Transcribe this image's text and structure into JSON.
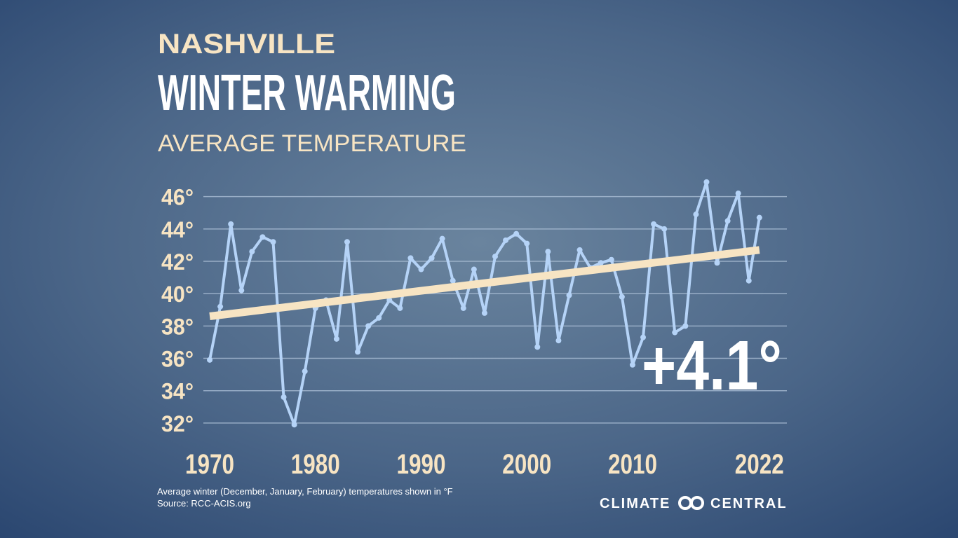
{
  "chart_data": {
    "type": "line",
    "location": "NASHVILLE",
    "title": "WINTER WARMING",
    "subtitle": "AVERAGE TEMPERATURE",
    "annotation": "+4.1°",
    "notes": [
      "Average winter (December, January, February) temperatures shown in °F",
      "Source: RCC-ACIS.org"
    ],
    "brand": {
      "left": "CLIMATE",
      "right": "CENTRAL"
    },
    "x": [
      1970,
      1971,
      1972,
      1973,
      1974,
      1975,
      1976,
      1977,
      1978,
      1979,
      1980,
      1981,
      1982,
      1983,
      1984,
      1985,
      1986,
      1987,
      1988,
      1989,
      1990,
      1991,
      1992,
      1993,
      1994,
      1995,
      1996,
      1997,
      1998,
      1999,
      2000,
      2001,
      2002,
      2003,
      2004,
      2005,
      2006,
      2007,
      2008,
      2009,
      2010,
      2011,
      2012,
      2013,
      2014,
      2015,
      2016,
      2017,
      2018,
      2019,
      2020,
      2021,
      2022
    ],
    "values": [
      35.9,
      39.2,
      44.3,
      40.2,
      42.6,
      43.5,
      43.2,
      33.6,
      31.9,
      35.2,
      39.1,
      39.6,
      37.2,
      43.2,
      36.4,
      38.0,
      38.5,
      39.6,
      39.1,
      42.2,
      41.5,
      42.2,
      43.4,
      40.8,
      39.1,
      41.5,
      38.8,
      42.3,
      43.3,
      43.7,
      43.1,
      36.7,
      42.6,
      37.1,
      39.9,
      42.7,
      41.6,
      41.9,
      42.1,
      39.8,
      35.6,
      37.3,
      44.3,
      44.0,
      37.6,
      38.0,
      44.9,
      46.9,
      41.9,
      44.5,
      46.2,
      40.8,
      44.7
    ],
    "color": "#b5d3f7",
    "trend": {
      "x": [
        1970,
        2022
      ],
      "values": [
        38.6,
        42.7
      ],
      "color": "#f7e4c3"
    },
    "xlim": [
      1969.4,
      2024.6
    ],
    "xticks": [
      1970,
      1980,
      1990,
      2000,
      2010,
      2022
    ],
    "ylim": [
      31,
      47.5
    ],
    "yticks": [
      {
        "value": 32,
        "label": "32°"
      },
      {
        "value": 34,
        "label": "34°"
      },
      {
        "value": 36,
        "label": "36°"
      },
      {
        "value": 38,
        "label": "38°"
      },
      {
        "value": 40,
        "label": "40°"
      },
      {
        "value": 42,
        "label": "42°"
      },
      {
        "value": 44,
        "label": "44°"
      },
      {
        "value": 46,
        "label": "46°"
      }
    ],
    "grid": true
  }
}
